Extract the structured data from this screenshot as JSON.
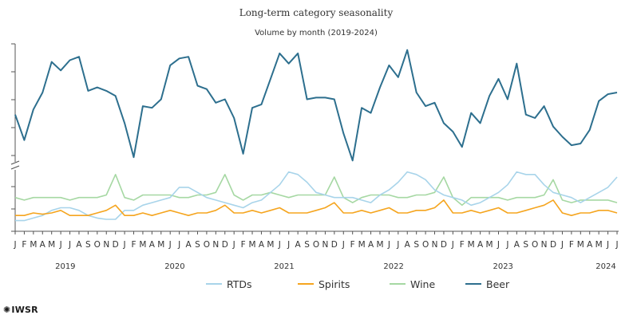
{
  "chart_data": {
    "type": "line",
    "title": "Long-term category seasonality",
    "subtitle": "Volume by month (2019-2024)",
    "x_month_letters": [
      "J",
      "F",
      "M",
      "A",
      "M",
      "J",
      "J",
      "A",
      "S",
      "O",
      "N",
      "D"
    ],
    "years": [
      "2019",
      "2020",
      "2021",
      "2022",
      "2023",
      "2024"
    ],
    "months_count": 67,
    "axis_break": true,
    "grid": false,
    "legend_position": "bottom-center",
    "colors": {
      "RTDs": "#a8d4ea",
      "Spirits": "#f5a51f",
      "Wine": "#a6d8a3",
      "Beer": "#2d6f8e"
    },
    "series": [
      {
        "name": "RTDs",
        "values": [
          2,
          2,
          3,
          4,
          6,
          7,
          7,
          6,
          4,
          3,
          2.5,
          2.5,
          6,
          6,
          8,
          9,
          10,
          11,
          15,
          15,
          13,
          11,
          10,
          9,
          8,
          7,
          9,
          10,
          13,
          16,
          21,
          20,
          17,
          13,
          12,
          11,
          11,
          11,
          10,
          9,
          12,
          14,
          17,
          21,
          20,
          18,
          14,
          12,
          11,
          10,
          8,
          9,
          11,
          13,
          16,
          21,
          20,
          20,
          16,
          13,
          12,
          11,
          9,
          11,
          13,
          15,
          19
        ]
      },
      {
        "name": "Spirits",
        "values": [
          4,
          4,
          5,
          4.5,
          5,
          6,
          4,
          4,
          4,
          5,
          6,
          8,
          4,
          4,
          5,
          4,
          5,
          6,
          5,
          4,
          5,
          5,
          6,
          8,
          5,
          5,
          6,
          5,
          6,
          7,
          5,
          5,
          5,
          6,
          7,
          9,
          5,
          5,
          6,
          5,
          6,
          7,
          5,
          5,
          6,
          6,
          7,
          10,
          5,
          5,
          6,
          5,
          6,
          7,
          5,
          5,
          6,
          7,
          8,
          10,
          5,
          4,
          5,
          5,
          6,
          6,
          5
        ]
      },
      {
        "name": "Wine",
        "values": [
          11,
          10,
          11,
          11,
          11,
          11,
          10,
          11,
          11,
          11,
          12,
          20,
          11,
          10,
          12,
          12,
          12,
          12,
          11,
          11,
          12,
          12,
          13,
          20,
          12,
          10,
          12,
          12,
          13,
          12,
          11,
          12,
          12,
          12,
          12,
          19,
          11,
          9,
          11,
          12,
          12,
          12,
          11,
          11,
          12,
          12,
          13,
          19,
          11,
          8,
          11,
          11,
          11,
          11,
          10,
          11,
          11,
          11,
          12,
          18,
          10,
          9,
          10,
          10,
          10,
          10,
          9
        ]
      },
      {
        "name": "Beer",
        "values": [
          112,
          97,
          115,
          125,
          143,
          138,
          144,
          146,
          126,
          128,
          126,
          123,
          107,
          87,
          117,
          116,
          121,
          141,
          145,
          146,
          129,
          127,
          119,
          121,
          110,
          89,
          116,
          118,
          133,
          148,
          142,
          148,
          121,
          122,
          122,
          121,
          101,
          85,
          116,
          113,
          128,
          141,
          134,
          150,
          125,
          117,
          119,
          107,
          102,
          93,
          113,
          107,
          123,
          133,
          121,
          142,
          112,
          110,
          117,
          105,
          99,
          94,
          95,
          103,
          120,
          124,
          125
        ]
      }
    ]
  },
  "logo_text": "IWSR"
}
